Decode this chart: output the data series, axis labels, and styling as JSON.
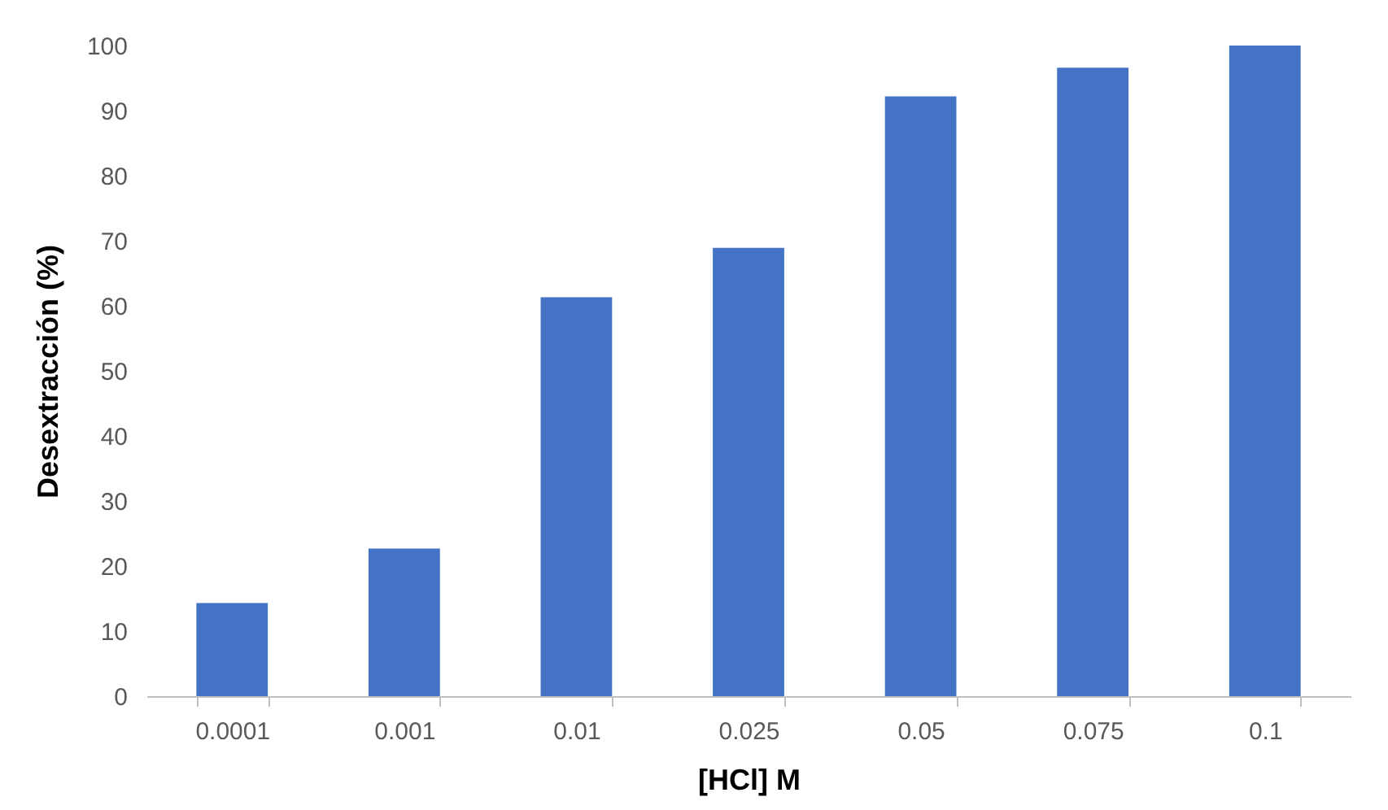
{
  "chart_data": {
    "type": "bar",
    "xlabel": "[HCl] M",
    "ylabel": "Desextracción (%)",
    "categories": [
      "0.0001",
      "0.001",
      "0.01",
      "0.025",
      "0.05",
      "0.075",
      "0.1"
    ],
    "values": [
      14.3,
      22.7,
      61.3,
      68.9,
      92.2,
      96.6,
      100
    ],
    "color": "#4472c4",
    "ylim": [
      0,
      100
    ],
    "yticks": [
      0,
      10,
      20,
      30,
      40,
      50,
      60,
      70,
      80,
      90,
      100
    ],
    "grid": false
  }
}
